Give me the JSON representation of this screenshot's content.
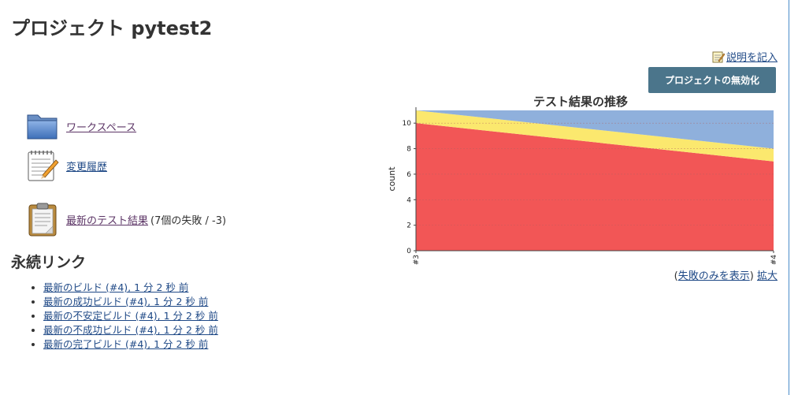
{
  "header": {
    "title": "プロジェクト pytest2"
  },
  "actions": {
    "edit_description": "説明を記入",
    "disable_project": "プロジェクトの無効化"
  },
  "tasks": {
    "workspace": "ワークスペース",
    "changes": "変更履歴",
    "test_results": "最新のテスト結果",
    "test_results_extra": "(7個の失敗 / -3)"
  },
  "permalinks": {
    "heading": "永続リンク",
    "items": [
      "最新のビルド (#4), 1 分 2 秒 前",
      "最新の成功ビルド (#4), 1 分 2 秒 前",
      "最新の不安定ビルド (#4), 1 分 2 秒 前",
      "最新の不成功ビルド (#4), 1 分 2 秒 前",
      "最新の完了ビルド (#4), 1 分 2 秒 前"
    ]
  },
  "chart_links": {
    "open_paren": "(",
    "failures_only": "失敗のみを表示",
    "close_paren": ")",
    "enlarge": "拡大"
  },
  "chart_data": {
    "type": "area",
    "title": "テスト結果の推移",
    "ylabel": "count",
    "xlabel": "",
    "categories": [
      "#3",
      "#4"
    ],
    "stacked": true,
    "ylim": [
      0,
      11
    ],
    "yticks": [
      0,
      2,
      4,
      6,
      8,
      10
    ],
    "grid": true,
    "series": [
      {
        "name": "",
        "values": [
          10,
          7
        ],
        "color": "#f25656"
      },
      {
        "name": "",
        "values": [
          1,
          1
        ],
        "color": "#fbe86e"
      },
      {
        "name": "",
        "values": [
          0,
          3
        ],
        "color": "#8fb0dc"
      }
    ]
  }
}
